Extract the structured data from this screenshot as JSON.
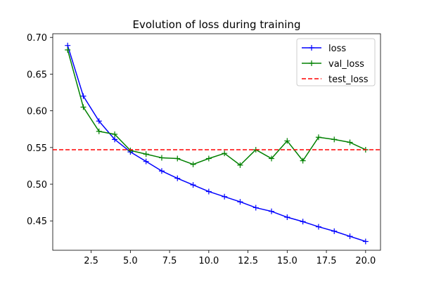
{
  "chart_data": {
    "type": "line",
    "title": "Evolution of loss during training",
    "xlabel": "",
    "ylabel": "",
    "xlim": [
      0.05,
      20.95
    ],
    "ylim": [
      0.41,
      0.705
    ],
    "x_ticks": [
      2.5,
      5.0,
      7.5,
      10.0,
      12.5,
      15.0,
      17.5,
      20.0
    ],
    "x_tick_labels": [
      "2.5",
      "5.0",
      "7.5",
      "10.0",
      "12.5",
      "15.0",
      "17.5",
      "20.0"
    ],
    "y_ticks": [
      0.45,
      0.5,
      0.55,
      0.6,
      0.65,
      0.7
    ],
    "y_tick_labels": [
      "0.45",
      "0.50",
      "0.55",
      "0.60",
      "0.65",
      "0.70"
    ],
    "grid": false,
    "legend_position": "top-right",
    "x": [
      1,
      2,
      3,
      4,
      5,
      6,
      7,
      8,
      9,
      10,
      11,
      12,
      13,
      14,
      15,
      16,
      17,
      18,
      19,
      20
    ],
    "series": [
      {
        "name": "loss",
        "color": "#0000ff",
        "style": "solid",
        "marker": "+",
        "values": [
          0.689,
          0.62,
          0.586,
          0.561,
          0.544,
          0.531,
          0.518,
          0.508,
          0.499,
          0.49,
          0.483,
          0.476,
          0.468,
          0.463,
          0.455,
          0.449,
          0.442,
          0.436,
          0.429,
          0.422
        ]
      },
      {
        "name": "val_loss",
        "color": "#008000",
        "style": "solid",
        "marker": "+",
        "values": [
          0.683,
          0.605,
          0.572,
          0.568,
          0.546,
          0.541,
          0.536,
          0.535,
          0.527,
          0.535,
          0.542,
          0.526,
          0.547,
          0.535,
          0.559,
          0.532,
          0.564,
          0.561,
          0.557,
          0.547
        ]
      },
      {
        "name": "test_loss",
        "color": "#ff0000",
        "style": "dashed",
        "marker": "",
        "hline": 0.547
      }
    ]
  }
}
